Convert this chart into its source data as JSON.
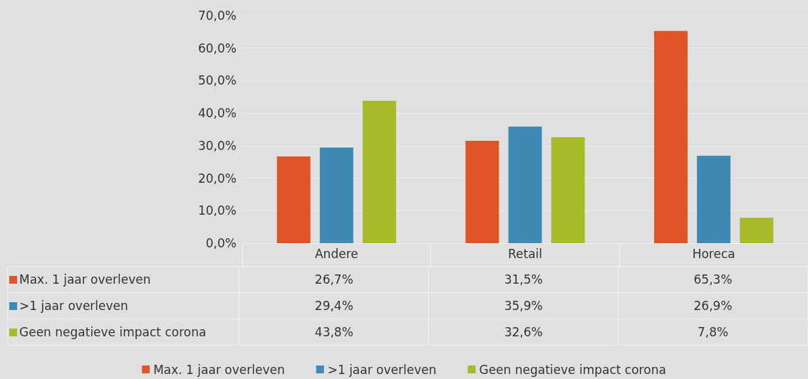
{
  "chart_data": {
    "type": "bar",
    "categories": [
      "Andere",
      "Retail",
      "Horeca"
    ],
    "series": [
      {
        "name": "Max. 1 jaar overleven",
        "color": "#e05527",
        "values": [
          26.7,
          31.5,
          65.3
        ],
        "value_labels": [
          "26,7%",
          "31,5%",
          "65,3%"
        ]
      },
      {
        "name": ">1 jaar overleven",
        "color": "#3e8ab5",
        "values": [
          29.4,
          35.9,
          26.9
        ],
        "value_labels": [
          "29,4%",
          "35,9%",
          "26,9%"
        ]
      },
      {
        "name": "Geen negatieve impact corona",
        "color": "#a8b92a",
        "values": [
          43.8,
          32.6,
          7.8
        ],
        "value_labels": [
          "43,8%",
          "32,6%",
          "7,8%"
        ]
      }
    ],
    "ylim": [
      0,
      70
    ],
    "yticks": [
      {
        "value": 0,
        "label": "0,0%"
      },
      {
        "value": 10,
        "label": "10,0%"
      },
      {
        "value": 20,
        "label": "20,0%"
      },
      {
        "value": 30,
        "label": "30,0%"
      },
      {
        "value": 40,
        "label": "40,0%"
      },
      {
        "value": 50,
        "label": "50,0%"
      },
      {
        "value": 60,
        "label": "60,0%"
      },
      {
        "value": 70,
        "label": "70,0%"
      }
    ],
    "grid": "y",
    "legend": "bottom"
  }
}
